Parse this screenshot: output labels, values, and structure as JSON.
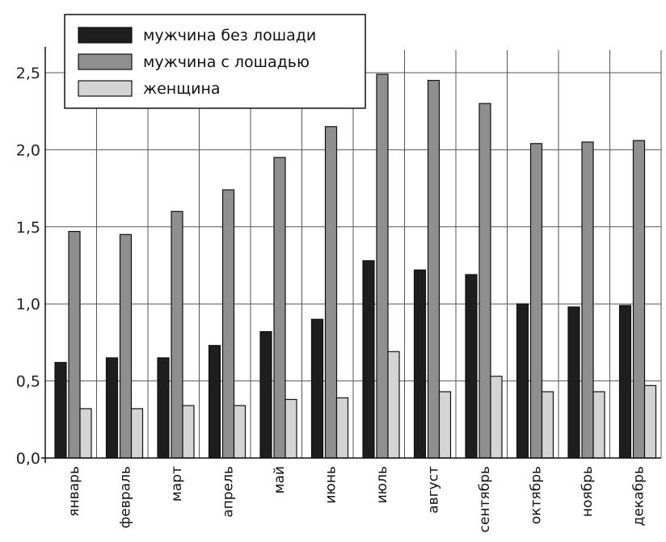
{
  "chart_data": {
    "type": "bar",
    "title": "",
    "xlabel": "",
    "ylabel": "",
    "ylim": [
      0,
      2.5
    ],
    "yticks": [
      "0,0",
      "0,5",
      "1,0",
      "1,5",
      "2,0",
      "2,5"
    ],
    "grid": true,
    "legend": "top-left",
    "categories": [
      "январь",
      "февраль",
      "март",
      "апрель",
      "май",
      "июнь",
      "июль",
      "август",
      "сентябрь",
      "октябрь",
      "ноябрь",
      "декабрь"
    ],
    "series": [
      {
        "name": "мужчина без лошади",
        "color": "#1e1e1e",
        "values": [
          0.62,
          0.65,
          0.65,
          0.73,
          0.82,
          0.9,
          1.28,
          1.22,
          1.19,
          1.0,
          0.98,
          0.99
        ]
      },
      {
        "name": "мужчина с лошадью",
        "color": "#8f8f8f",
        "values": [
          1.47,
          1.45,
          1.6,
          1.74,
          1.95,
          2.15,
          2.49,
          2.45,
          2.3,
          2.04,
          2.05,
          2.06
        ]
      },
      {
        "name": "женщина",
        "color": "#d4d4d4",
        "values": [
          0.32,
          0.32,
          0.34,
          0.34,
          0.38,
          0.39,
          0.69,
          0.43,
          0.53,
          0.43,
          0.43,
          0.47
        ]
      }
    ]
  }
}
